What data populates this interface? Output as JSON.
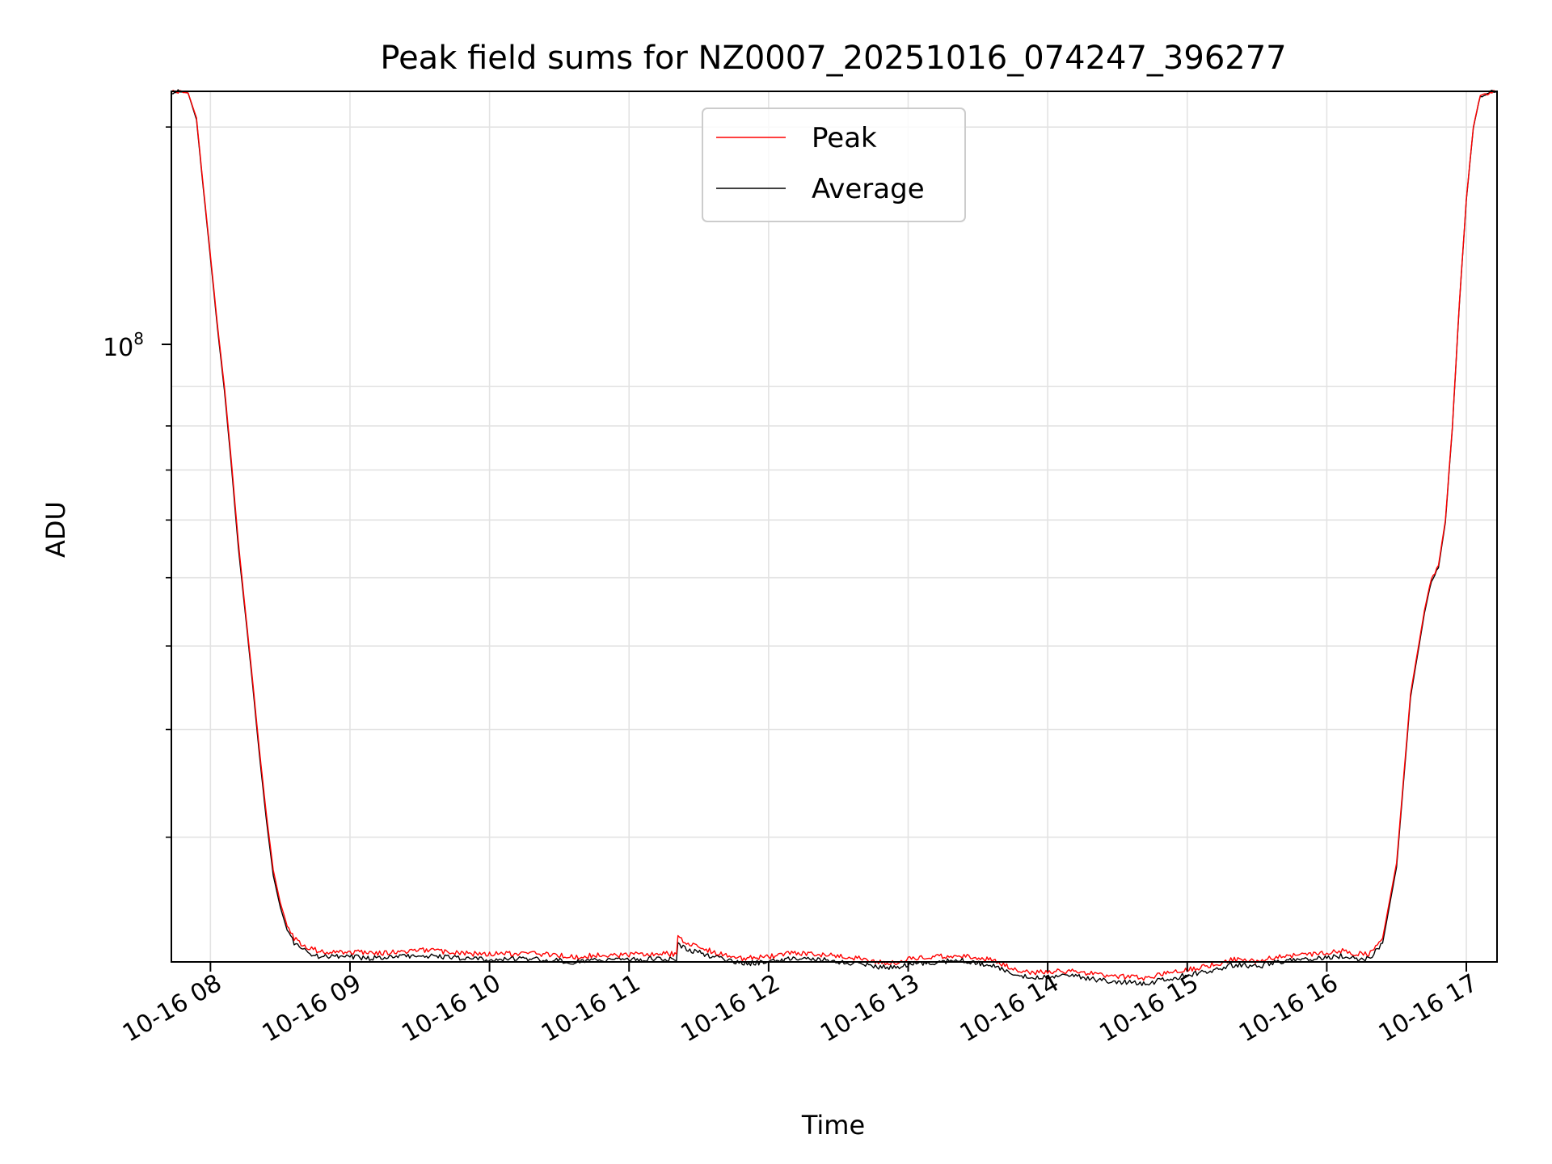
{
  "chart_data": {
    "type": "line",
    "title": "Peak field sums for NZ0007_20251016_074247_396277",
    "xlabel": "Time",
    "ylabel": "ADU",
    "yscale": "log",
    "ytick_major": {
      "value": 100000000,
      "label": "10",
      "exponent": "8"
    },
    "ylim": [
      21500000,
      220000000
    ],
    "xlim": [
      7.72,
      17.22
    ],
    "x_ticks": [
      {
        "value": 8,
        "label": "10-16 08"
      },
      {
        "value": 9,
        "label": "10-16 09"
      },
      {
        "value": 10,
        "label": "10-16 10"
      },
      {
        "value": 11,
        "label": "10-16 11"
      },
      {
        "value": 12,
        "label": "10-16 12"
      },
      {
        "value": 13,
        "label": "10-16 13"
      },
      {
        "value": 14,
        "label": "10-16 14"
      },
      {
        "value": 15,
        "label": "10-16 15"
      },
      {
        "value": 16,
        "label": "10-16 16"
      },
      {
        "value": 17,
        "label": "10-16 17"
      }
    ],
    "grid": true,
    "legend": {
      "position": "upper-center"
    },
    "x_unit": "hour of day, 2025-10-16",
    "series": [
      {
        "name": "Peak",
        "color": "#ff0000",
        "x": [
          7.72,
          7.84,
          7.9,
          7.95,
          8.0,
          8.05,
          8.1,
          8.15,
          8.2,
          8.25,
          8.3,
          8.35,
          8.4,
          8.45,
          8.5,
          8.55,
          8.6,
          8.7,
          8.8,
          9.0,
          9.2,
          9.5,
          9.8,
          10.0,
          10.3,
          10.6,
          10.8,
          11.0,
          11.2,
          11.34,
          11.35,
          11.4,
          11.6,
          11.8,
          12.0,
          12.2,
          12.4,
          12.6,
          12.8,
          12.9,
          13.0,
          13.2,
          13.4,
          13.6,
          13.8,
          13.9,
          14.0,
          14.2,
          14.3,
          14.4,
          14.6,
          14.7,
          14.8,
          15.0,
          15.2,
          15.3,
          15.4,
          15.5,
          15.6,
          15.7,
          15.8,
          16.0,
          16.1,
          16.2,
          16.3,
          16.4,
          16.5,
          16.6,
          16.7,
          16.75,
          16.8,
          16.85,
          16.9,
          16.95,
          17.0,
          17.05,
          17.1,
          17.22
        ],
        "y": [
          220000000,
          219000000,
          205000000,
          170000000,
          142000000,
          118000000,
          100000000,
          82000000,
          66000000,
          55000000,
          46000000,
          38000000,
          32000000,
          27500000,
          25200000,
          23700000,
          22900000,
          22300000,
          22100000,
          22100000,
          22000000,
          22200000,
          22000000,
          21950000,
          22000000,
          21800000,
          21900000,
          21900000,
          22000000,
          21950000,
          23100000,
          22700000,
          22100000,
          21700000,
          21800000,
          22050000,
          21900000,
          21750000,
          21500000,
          21450000,
          21650000,
          21800000,
          21900000,
          21600000,
          21000000,
          20900000,
          20950000,
          21000000,
          20850000,
          20750000,
          20650000,
          20550000,
          20780000,
          21050000,
          21350000,
          21600000,
          21650000,
          21500000,
          21750000,
          21850000,
          21900000,
          22050000,
          22150000,
          22000000,
          21950000,
          22900000,
          28000000,
          44000000,
          55000000,
          60000000,
          62000000,
          70000000,
          90000000,
          125000000,
          165000000,
          200000000,
          218000000,
          220000000
        ]
      },
      {
        "name": "Average",
        "color": "#000000",
        "x": [
          7.72,
          7.84,
          7.9,
          7.95,
          8.0,
          8.05,
          8.1,
          8.15,
          8.2,
          8.25,
          8.3,
          8.35,
          8.4,
          8.45,
          8.5,
          8.55,
          8.6,
          8.7,
          8.8,
          9.0,
          9.2,
          9.5,
          9.8,
          10.0,
          10.3,
          10.6,
          10.8,
          11.0,
          11.2,
          11.34,
          11.35,
          11.4,
          11.6,
          11.8,
          12.0,
          12.2,
          12.4,
          12.6,
          12.8,
          12.9,
          13.0,
          13.2,
          13.4,
          13.6,
          13.8,
          13.9,
          14.0,
          14.2,
          14.3,
          14.4,
          14.6,
          14.7,
          14.8,
          15.0,
          15.2,
          15.3,
          15.4,
          15.5,
          15.6,
          15.7,
          15.8,
          16.0,
          16.1,
          16.2,
          16.3,
          16.4,
          16.5,
          16.6,
          16.7,
          16.75,
          16.8,
          16.85,
          16.9,
          16.95,
          17.0,
          17.05,
          17.1,
          17.22
        ],
        "y": [
          220000000,
          219000000,
          204000000,
          169000000,
          141000000,
          117000000,
          99000000,
          81000000,
          65000000,
          54500000,
          45500000,
          37500000,
          31500000,
          27100000,
          24900000,
          23400000,
          22600000,
          22000000,
          21800000,
          21800000,
          21700000,
          21900000,
          21700000,
          21650000,
          21700000,
          21500000,
          21600000,
          21600000,
          21700000,
          21650000,
          22600000,
          22300000,
          21800000,
          21400000,
          21500000,
          21750000,
          21600000,
          21450000,
          21200000,
          21150000,
          21350000,
          21500000,
          21600000,
          21300000,
          20700000,
          20600000,
          20650000,
          20700000,
          20550000,
          20450000,
          20350000,
          20250000,
          20480000,
          20750000,
          21050000,
          21300000,
          21350000,
          21200000,
          21450000,
          21550000,
          21600000,
          21750000,
          21850000,
          21700000,
          21650000,
          22600000,
          27700000,
          43600000,
          54600000,
          59600000,
          61600000,
          69600000,
          89600000,
          124500000,
          164500000,
          199500000,
          217800000,
          220000000
        ]
      }
    ]
  }
}
